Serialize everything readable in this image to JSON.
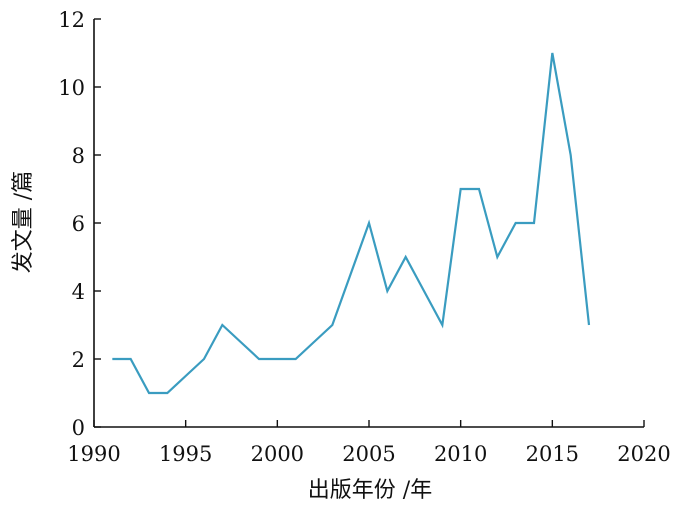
{
  "chart_data": {
    "type": "line",
    "title": "",
    "xlabel": "出版年份 /年",
    "ylabel": "发文量 /篇",
    "xlim": [
      1990,
      2020
    ],
    "ylim": [
      0,
      12
    ],
    "xticks": [
      1990,
      1995,
      2000,
      2005,
      2010,
      2015,
      2020
    ],
    "yticks": [
      0,
      2,
      4,
      6,
      8,
      10,
      12
    ],
    "grid": false,
    "legend": "none",
    "series": [
      {
        "color": "#3a9cc0",
        "x": [
          1991,
          1992,
          1993,
          1994,
          1995,
          1996,
          1997,
          1998,
          1999,
          2000,
          2001,
          2002,
          2003,
          2004,
          2005,
          2006,
          2007,
          2008,
          2009,
          2010,
          2011,
          2012,
          2013,
          2014,
          2015,
          2016,
          2017
        ],
        "y": [
          2,
          2,
          1,
          1,
          1.5,
          2,
          3,
          2.5,
          2,
          2,
          2,
          2.5,
          3,
          4.5,
          6,
          4,
          5,
          4,
          3,
          7,
          7,
          5,
          6,
          6,
          11,
          8,
          3
        ]
      }
    ]
  }
}
